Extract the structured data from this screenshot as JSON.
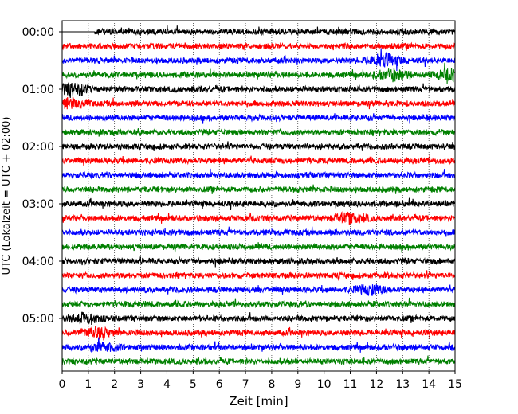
{
  "chart_data": {
    "type": "line",
    "title": "",
    "xlabel": "Zeit  [min]",
    "ylabel": "UTC (Lokalzeit = UTC + 02:00)",
    "xlim": [
      0,
      15
    ],
    "x_ticks": [
      "0",
      "1",
      "2",
      "3",
      "4",
      "5",
      "6",
      "7",
      "8",
      "9",
      "10",
      "11",
      "12",
      "13",
      "14",
      "15"
    ],
    "y_tick_labels": [
      "00:00",
      "01:00",
      "02:00",
      "03:00",
      "04:00",
      "05:00"
    ],
    "grid": "vertical dotted at each minute",
    "trace_interval_minutes": 15,
    "trace_count": 24,
    "trace_colors": [
      "#000000",
      "#ff0000",
      "#0000ff",
      "#008000"
    ],
    "data_start_minute": 1.25,
    "events": [
      {
        "trace": 2,
        "x": 12.3,
        "level": 2.2
      },
      {
        "trace": 3,
        "x": 12.6,
        "level": 1.6
      },
      {
        "trace": 3,
        "x": 14.8,
        "level": 1.5
      },
      {
        "trace": 4,
        "x": 0.4,
        "level": 2.0
      },
      {
        "trace": 5,
        "x": 0.3,
        "level": 1.4
      },
      {
        "trace": 13,
        "x": 11.0,
        "level": 1.5
      },
      {
        "trace": 18,
        "x": 11.8,
        "level": 1.4
      },
      {
        "trace": 20,
        "x": 0.9,
        "level": 1.4
      },
      {
        "trace": 21,
        "x": 1.3,
        "level": 1.5
      },
      {
        "trace": 22,
        "x": 1.5,
        "level": 1.3
      }
    ]
  }
}
